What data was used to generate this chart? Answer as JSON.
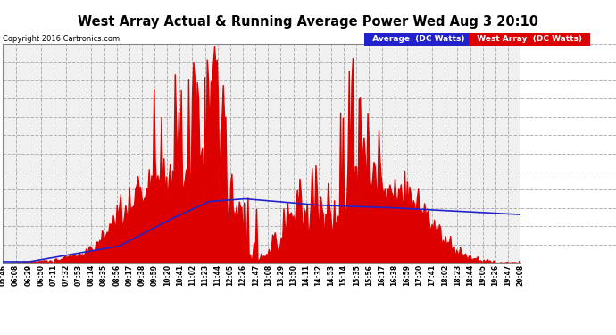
{
  "title": "West Array Actual & Running Average Power Wed Aug 3 20:10",
  "copyright": "Copyright 2016 Cartronics.com",
  "ylim": [
    0,
    1744.7
  ],
  "yticks": [
    0.0,
    145.4,
    290.8,
    436.2,
    581.6,
    727.0,
    872.4,
    1017.8,
    1163.2,
    1308.6,
    1454.0,
    1599.4,
    1744.7
  ],
  "legend_avg_label": "Average  (DC Watts)",
  "legend_west_label": "West Array  (DC Watts)",
  "plot_bg": "#ffffff",
  "grid_color": "#aaaaaa",
  "fill_color": "#dd0000",
  "line_color": "#2222cc",
  "xtick_labels": [
    "05:46",
    "06:08",
    "06:29",
    "06:50",
    "07:11",
    "07:32",
    "07:53",
    "08:14",
    "08:35",
    "08:56",
    "09:17",
    "09:38",
    "09:59",
    "10:20",
    "10:41",
    "11:02",
    "11:23",
    "11:44",
    "12:05",
    "12:26",
    "12:47",
    "13:08",
    "13:29",
    "13:50",
    "14:11",
    "14:32",
    "14:53",
    "15:14",
    "15:35",
    "15:56",
    "16:17",
    "16:38",
    "16:59",
    "17:20",
    "17:41",
    "18:02",
    "18:23",
    "18:44",
    "19:05",
    "19:26",
    "19:47",
    "20:08"
  ],
  "num_points": 420,
  "seed": 12345
}
